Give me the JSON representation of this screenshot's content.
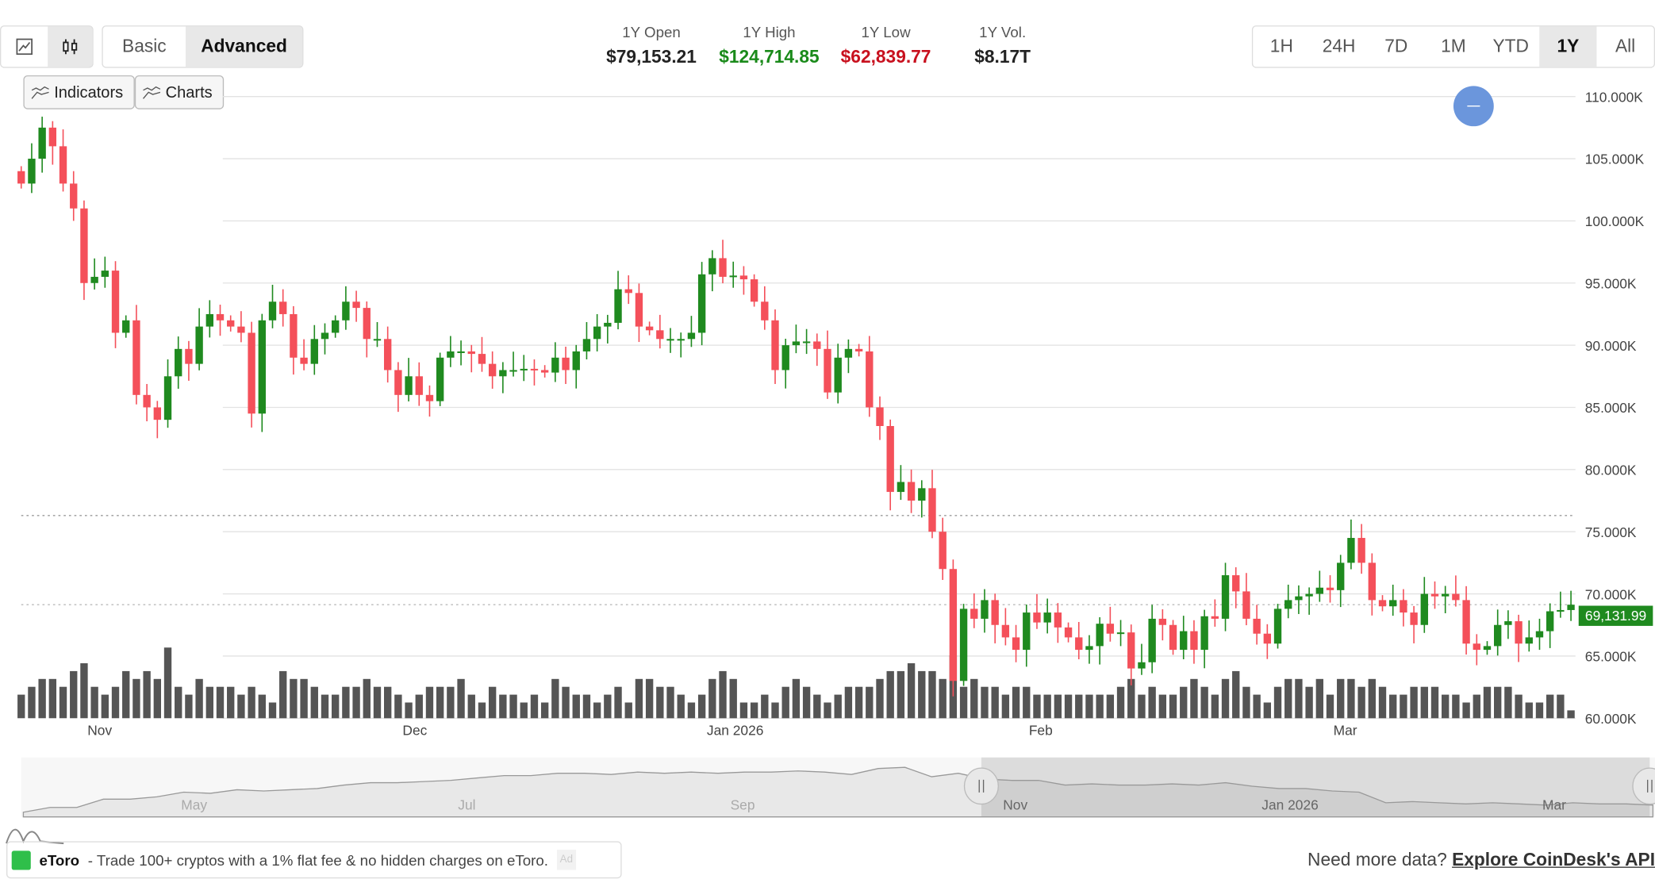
{
  "toolbar": {
    "chart_type_icons": [
      "line-chart-icon",
      "candlestick-icon"
    ],
    "active_chart_type": "candlestick",
    "modes": [
      "Basic",
      "Advanced"
    ],
    "active_mode": "Advanced",
    "indicators_label": "Indicators",
    "charts_label": "Charts"
  },
  "stats": [
    {
      "label": "1Y Open",
      "value": "$79,153.21",
      "color": "#222222"
    },
    {
      "label": "1Y High",
      "value": "$124,714.85",
      "color": "#1a8a1a"
    },
    {
      "label": "1Y Low",
      "value": "$62,839.77",
      "color": "#c8101e"
    },
    {
      "label": "1Y Vol.",
      "value": "$8.17T",
      "color": "#222222"
    }
  ],
  "ranges": [
    "1H",
    "24H",
    "7D",
    "1M",
    "YTD",
    "1Y",
    "All"
  ],
  "active_range": "1Y",
  "colors": {
    "up": "#1f8a1f",
    "down": "#f4505a",
    "volume": "#555555",
    "current_price_bg": "#1f8a1f",
    "handle": "#6b96dc"
  },
  "chart_data": {
    "type": "candlestick",
    "x_start": "2025-10-24",
    "x_ticks": [
      "Nov",
      "Dec",
      "Jan 2026",
      "Feb",
      "Mar"
    ],
    "y_ticks": [
      "110.000K",
      "105.000K",
      "100.000K",
      "95.000K",
      "90.000K",
      "85.000K",
      "80.000K",
      "75.000K",
      "70.000K",
      "65.000K",
      "60.000K"
    ],
    "ylim": [
      60000,
      110000
    ],
    "grid": true,
    "current_price": "69,131.99",
    "current_price_value": 69131.99,
    "reference_line": 76300,
    "first_open": 104,
    "closes": [
      103,
      105,
      107.5,
      106,
      103,
      101,
      95,
      95.5,
      96,
      91,
      92,
      86,
      85,
      84,
      87.5,
      89.7,
      88.5,
      91.5,
      92.5,
      92,
      91.5,
      91,
      84.5,
      92,
      93.5,
      92.5,
      89,
      88.5,
      90.5,
      91,
      92,
      93.5,
      93,
      90.5,
      90.5,
      88,
      86,
      87.5,
      86,
      85.5,
      89,
      89.5,
      89.5,
      89.3,
      88.5,
      87.5,
      88,
      88,
      88.1,
      88,
      87.8,
      89,
      88,
      89.5,
      90.5,
      91.5,
      91.8,
      94.5,
      94.2,
      91.5,
      91.2,
      90.5,
      90.5,
      90.5,
      91,
      95.7,
      97,
      95.5,
      95.6,
      95.3,
      93.5,
      92,
      88,
      90,
      90.3,
      90.3,
      89.7,
      86.2,
      89,
      89.7,
      89.5,
      85,
      83.5,
      78.2,
      79,
      77.5,
      78.5,
      75,
      72,
      63,
      68.8,
      68,
      69.5,
      67.5,
      66.5,
      65.5,
      68.5,
      67.7,
      68.5,
      67.3,
      66.5,
      65.5,
      65.8,
      67.6,
      66.8,
      66.9,
      64,
      64.5,
      68,
      67.5,
      65.5,
      67,
      65.5,
      68.2,
      68,
      71.5,
      70.2,
      68,
      66.8,
      66,
      68.8,
      69.5,
      69.8,
      70,
      70.5,
      70.3,
      72.5,
      74.5,
      72.5,
      69.5,
      69,
      69.5,
      68.5,
      67.5,
      70,
      69.8,
      70,
      69.5,
      66,
      65.5,
      65.8,
      67.5,
      67.8,
      66,
      66.5,
      67,
      68.6,
      68.7,
      69.13
    ],
    "volumes": [
      3,
      4,
      5,
      5,
      4,
      6,
      7,
      4,
      3,
      4,
      6,
      5,
      6,
      5,
      9,
      4,
      3,
      5,
      4,
      4,
      4,
      3,
      4,
      3,
      2,
      6,
      5,
      5,
      4,
      3,
      3,
      4,
      4,
      5,
      4,
      4,
      3,
      2,
      3,
      4,
      4,
      4,
      5,
      3,
      2,
      4,
      3,
      3,
      2,
      3,
      2,
      5,
      4,
      3,
      3,
      2,
      3,
      4,
      2,
      5,
      5,
      4,
      4,
      3,
      2,
      3,
      5,
      6,
      5,
      2,
      2,
      3,
      2,
      4,
      5,
      4,
      3,
      2,
      3,
      4,
      4,
      4,
      5,
      6,
      6,
      7,
      6,
      6,
      5,
      8,
      4,
      5,
      4,
      4,
      3,
      4,
      4,
      3,
      3,
      3,
      3,
      3,
      3,
      3,
      3,
      4,
      5,
      3,
      4,
      3,
      3,
      4,
      5,
      4,
      3,
      5,
      6,
      4,
      3,
      2,
      4,
      5,
      5,
      4,
      5,
      3,
      5,
      5,
      4,
      5,
      4,
      3,
      3,
      4,
      4,
      4,
      3,
      3,
      2,
      3,
      4,
      4,
      4,
      3,
      2,
      2,
      3,
      3,
      1
    ],
    "navigator": {
      "x_ticks": [
        "May",
        "Jul",
        "Sep",
        "Nov",
        "Jan 2026",
        "Mar"
      ],
      "values": [
        84,
        88,
        88,
        95,
        95,
        97,
        101,
        100,
        103,
        102,
        103,
        104,
        107,
        109,
        109,
        110,
        111,
        113,
        115,
        115,
        117,
        117,
        116,
        118,
        117,
        118,
        117,
        118,
        118,
        119,
        118,
        116,
        121,
        122,
        114,
        117,
        112,
        111,
        111,
        107,
        108,
        107,
        107,
        108,
        107,
        109,
        106,
        104,
        104,
        102,
        101,
        92,
        93,
        92,
        91,
        92,
        91,
        90,
        92,
        91,
        91,
        90
      ]
    },
    "selection": [
      "Nov",
      "Mar"
    ]
  },
  "ad": {
    "brand": "eToro",
    "text": "- Trade 100+ cryptos with a 1% flat fee & no hidden charges on eToro.",
    "badge": "Ad"
  },
  "footer": {
    "prompt": "Need more data?",
    "link": "Explore CoinDesk's API"
  }
}
